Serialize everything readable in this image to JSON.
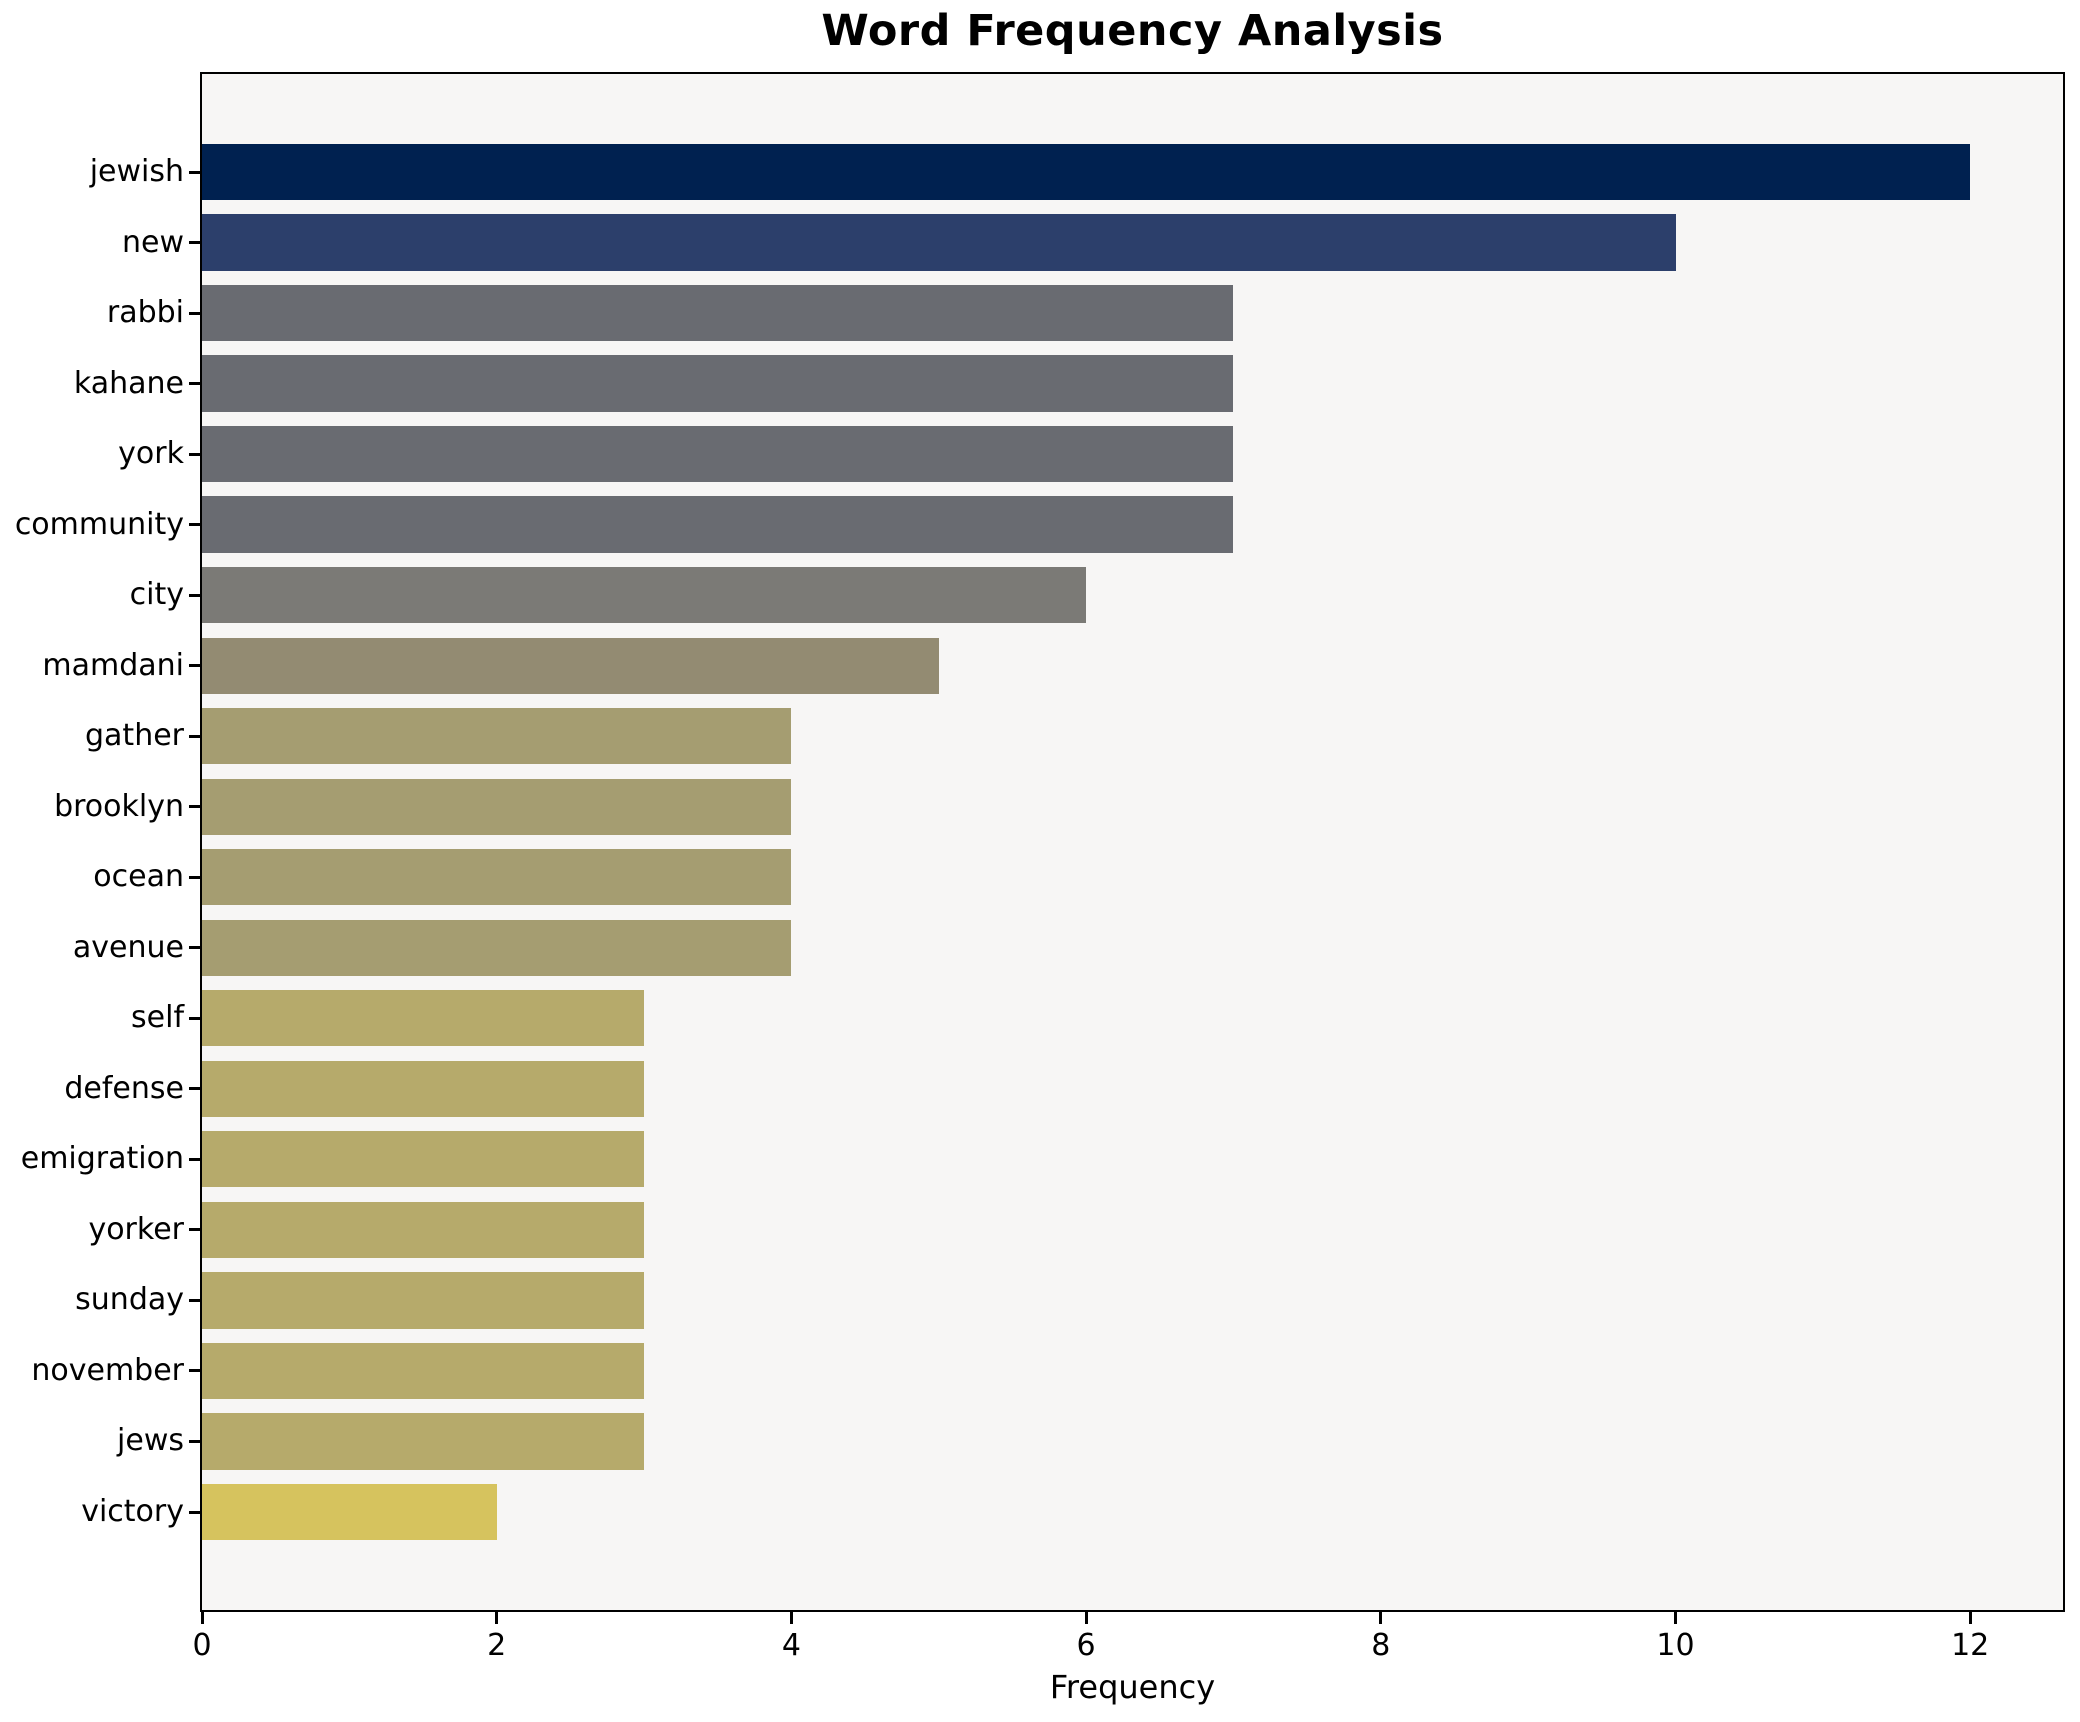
{
  "title": "Word Frequency Analysis",
  "xlabel": "Frequency",
  "chart_data": {
    "type": "bar",
    "orientation": "horizontal",
    "title": "Word Frequency Analysis",
    "xlabel": "Frequency",
    "ylabel": "",
    "categories": [
      "jewish",
      "new",
      "rabbi",
      "kahane",
      "york",
      "community",
      "city",
      "mamdani",
      "gather",
      "brooklyn",
      "ocean",
      "avenue",
      "self",
      "defense",
      "emigration",
      "yorker",
      "sunday",
      "november",
      "jews",
      "victory"
    ],
    "values": [
      12,
      10,
      7,
      7,
      7,
      7,
      6,
      5,
      4,
      4,
      4,
      4,
      3,
      3,
      3,
      3,
      3,
      3,
      3,
      2
    ],
    "bar_colors": [
      "#002150",
      "#2c3f6b",
      "#696b71",
      "#696b71",
      "#696b71",
      "#696b71",
      "#7b7a76",
      "#938b72",
      "#a59d71",
      "#a59d71",
      "#a59d71",
      "#a59d71",
      "#b6aa6b",
      "#b6aa6b",
      "#b6aa6b",
      "#b6aa6b",
      "#b6aa6b",
      "#b6aa6b",
      "#b6aa6b",
      "#d6c35e"
    ],
    "xticks": [
      0,
      2,
      4,
      6,
      8,
      10,
      12
    ],
    "xlim": [
      0,
      12.63
    ],
    "grid": false,
    "legend": null,
    "plot_background": "#f7f6f5",
    "figure_background": "#ffffff",
    "spine_color": "#000000",
    "text_color": "#000000"
  }
}
